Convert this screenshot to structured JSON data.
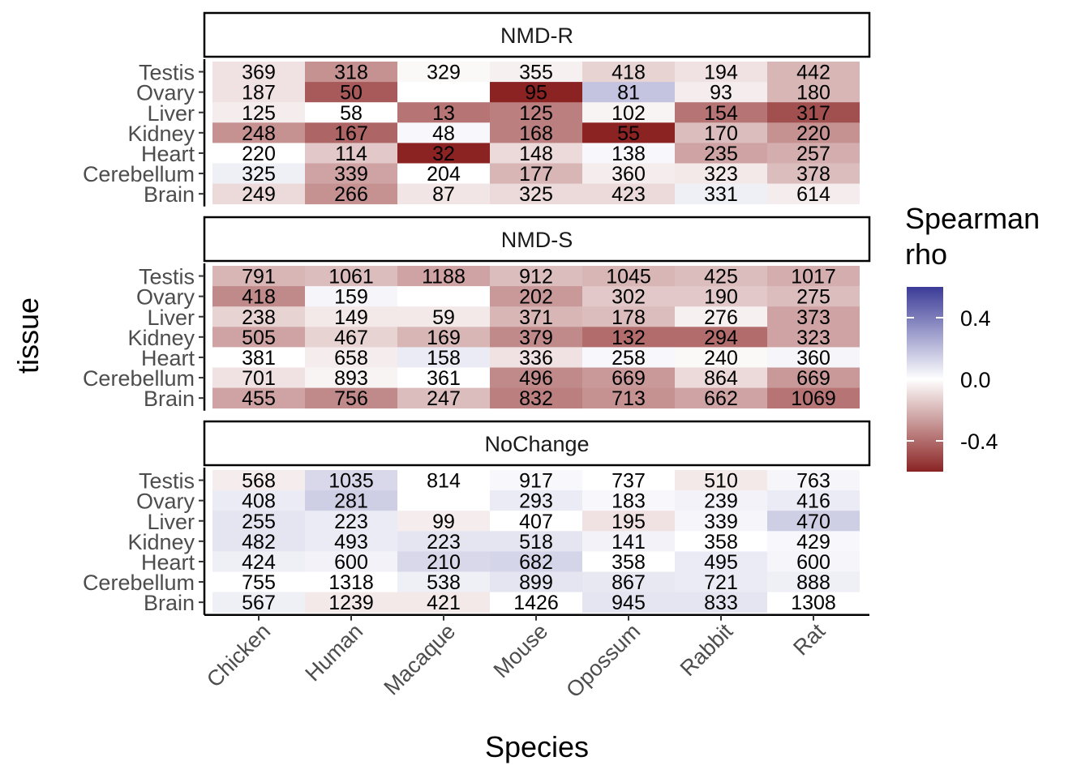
{
  "chart_data": {
    "type": "heatmap",
    "xlabel": "Species",
    "ylabel": "tissue",
    "x_categories": [
      "Chicken",
      "Human",
      "Macaque",
      "Mouse",
      "Opossum",
      "Rabbit",
      "Rat"
    ],
    "y_categories": [
      "Testis",
      "Ovary",
      "Liver",
      "Kidney",
      "Heart",
      "Cerebellum",
      "Brain"
    ],
    "legend": {
      "title": "Spearman rho",
      "title_lines": [
        "Spearman",
        "rho"
      ],
      "ticks": [
        0.4,
        0.0,
        -0.4
      ],
      "tick_labels": [
        "0.4",
        "0.0",
        "-0.4"
      ],
      "range": [
        -0.6,
        0.6
      ],
      "low_color": "#8b2323",
      "mid_color": "#ffffff",
      "high_color": "#3b3b98"
    },
    "facets": [
      {
        "name": "NMD-R",
        "counts": [
          [
            369,
            318,
            329,
            355,
            418,
            194,
            442
          ],
          [
            187,
            50,
            null,
            95,
            81,
            93,
            180
          ],
          [
            125,
            58,
            13,
            125,
            102,
            154,
            317
          ],
          [
            248,
            167,
            48,
            168,
            55,
            170,
            220
          ],
          [
            220,
            114,
            32,
            148,
            138,
            235,
            257
          ],
          [
            325,
            339,
            204,
            177,
            360,
            323,
            378
          ],
          [
            249,
            266,
            87,
            325,
            423,
            331,
            614
          ]
        ],
        "rho": [
          [
            -0.08,
            -0.3,
            -0.02,
            -0.04,
            -0.12,
            -0.08,
            -0.2
          ],
          [
            -0.08,
            -0.45,
            null,
            -0.6,
            0.18,
            -0.05,
            -0.2
          ],
          [
            -0.05,
            0.0,
            -0.38,
            -0.35,
            -0.03,
            -0.38,
            -0.48
          ],
          [
            -0.3,
            -0.42,
            0.02,
            -0.35,
            -0.6,
            -0.18,
            -0.3
          ],
          [
            0.0,
            -0.15,
            -0.6,
            -0.1,
            0.02,
            -0.25,
            -0.22
          ],
          [
            0.05,
            -0.25,
            0.0,
            -0.2,
            -0.05,
            -0.06,
            -0.18
          ],
          [
            -0.1,
            -0.3,
            -0.07,
            -0.1,
            -0.1,
            0.05,
            -0.05
          ]
        ]
      },
      {
        "name": "NMD-S",
        "counts": [
          [
            791,
            1061,
            1188,
            912,
            1045,
            425,
            1017
          ],
          [
            418,
            159,
            null,
            202,
            302,
            190,
            275
          ],
          [
            238,
            149,
            59,
            371,
            178,
            276,
            373
          ],
          [
            505,
            467,
            169,
            379,
            132,
            294,
            323
          ],
          [
            381,
            658,
            158,
            336,
            258,
            240,
            360
          ],
          [
            701,
            893,
            361,
            496,
            669,
            864,
            669
          ],
          [
            455,
            756,
            247,
            832,
            713,
            662,
            1069
          ]
        ],
        "rho": [
          [
            -0.2,
            -0.18,
            -0.25,
            -0.18,
            -0.2,
            -0.18,
            -0.22
          ],
          [
            -0.32,
            0.03,
            null,
            -0.28,
            -0.15,
            -0.15,
            -0.18
          ],
          [
            -0.12,
            -0.06,
            -0.06,
            -0.2,
            -0.18,
            -0.04,
            -0.25
          ],
          [
            -0.25,
            -0.12,
            -0.2,
            -0.32,
            -0.4,
            -0.4,
            -0.25
          ],
          [
            0.0,
            -0.05,
            0.06,
            -0.08,
            0.02,
            -0.02,
            0.03
          ],
          [
            -0.08,
            -0.03,
            0.0,
            -0.32,
            -0.28,
            -0.1,
            -0.28
          ],
          [
            -0.25,
            -0.32,
            -0.18,
            -0.35,
            -0.3,
            -0.25,
            -0.38
          ]
        ]
      },
      {
        "name": "NoChange",
        "counts": [
          [
            568,
            1035,
            814,
            917,
            737,
            510,
            763
          ],
          [
            408,
            281,
            null,
            293,
            183,
            239,
            416
          ],
          [
            255,
            223,
            99,
            407,
            195,
            339,
            470
          ],
          [
            482,
            493,
            223,
            518,
            141,
            358,
            429
          ],
          [
            424,
            600,
            210,
            682,
            358,
            495,
            600
          ],
          [
            755,
            1318,
            538,
            899,
            867,
            721,
            888
          ],
          [
            567,
            1239,
            421,
            1426,
            945,
            833,
            1308
          ]
        ],
        "rho": [
          [
            -0.05,
            0.12,
            0.0,
            0.02,
            0.0,
            -0.06,
            0.03
          ],
          [
            0.06,
            0.15,
            null,
            0.06,
            0.02,
            0.04,
            0.06
          ],
          [
            0.08,
            0.06,
            -0.05,
            0.0,
            -0.08,
            0.03,
            0.15
          ],
          [
            0.08,
            0.06,
            0.08,
            0.08,
            0.04,
            0.0,
            0.02
          ],
          [
            0.05,
            0.04,
            0.12,
            0.13,
            0.0,
            0.06,
            0.03
          ],
          [
            0.0,
            0.0,
            0.05,
            0.08,
            0.07,
            0.06,
            0.05
          ],
          [
            0.05,
            -0.06,
            -0.06,
            0.0,
            0.08,
            0.08,
            0.0
          ]
        ]
      }
    ]
  }
}
